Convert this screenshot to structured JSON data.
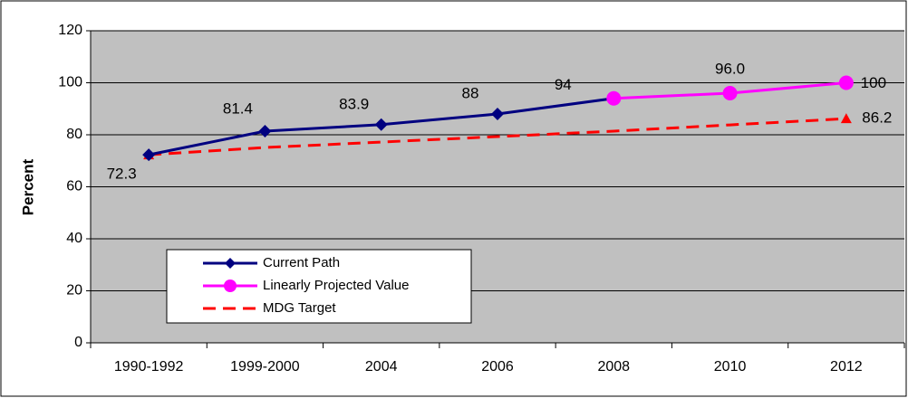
{
  "chart_data": {
    "type": "line",
    "y_label": "Percent",
    "categories": [
      "1990-1992",
      "1999-2000",
      "2004",
      "2006",
      "2008",
      "2010",
      "2012"
    ],
    "series": [
      {
        "name": "Current Path",
        "color": "#000080",
        "marker": "diamond",
        "dash": false,
        "values": [
          72.3,
          81.4,
          83.9,
          88,
          94,
          null,
          null
        ]
      },
      {
        "name": "Linearly Projected Value",
        "color": "#ff00ff",
        "marker": "circle",
        "dash": false,
        "values": [
          null,
          null,
          null,
          null,
          94,
          96.0,
          100
        ],
        "value_labels": [
          null,
          null,
          null,
          null,
          null,
          "96.0",
          "100"
        ]
      },
      {
        "name": "MDG Target",
        "color": "#ff0000",
        "marker": "triangle",
        "dash": true,
        "values": [
          72.3,
          75.1,
          77.2,
          79.3,
          81.4,
          83.8,
          86.2
        ],
        "value_labels": [
          null,
          null,
          null,
          null,
          null,
          null,
          "86.2"
        ]
      }
    ],
    "ylim": [
      0,
      120
    ],
    "yticks": [
      0,
      20,
      40,
      60,
      80,
      100,
      120
    ],
    "grid": true,
    "legend": "lower left"
  }
}
